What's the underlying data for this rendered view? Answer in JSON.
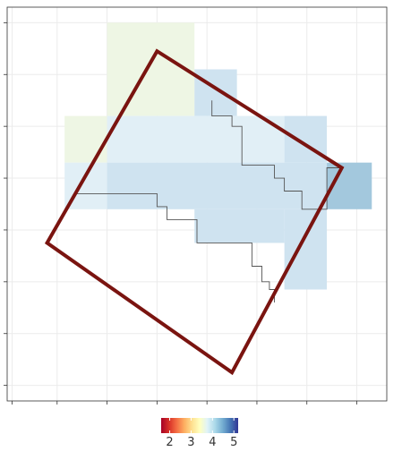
{
  "chart_data": {
    "type": "heatmap",
    "title": "",
    "xlabel": "",
    "ylabel": "",
    "xlim": [
      0,
      7.6
    ],
    "ylim": [
      0,
      7.6
    ],
    "grid": true,
    "x_axis_labels": [],
    "y_axis_labels": [],
    "cells": [
      {
        "x0": 2.0,
        "x1": 3.75,
        "y0": 5.5,
        "y1": 7.3,
        "value": 3.55,
        "color": "#eef6e4"
      },
      {
        "x0": 3.75,
        "x1": 4.6,
        "y0": 5.5,
        "y1": 6.4,
        "value": 4.1,
        "color": "#cfe3f0"
      },
      {
        "x0": 1.15,
        "x1": 2.0,
        "y0": 4.6,
        "y1": 5.5,
        "value": 3.55,
        "color": "#eef6e4"
      },
      {
        "x0": 2.0,
        "x1": 5.55,
        "y0": 4.6,
        "y1": 5.5,
        "value": 3.85,
        "color": "#e1eff6"
      },
      {
        "x0": 5.55,
        "x1": 6.4,
        "y0": 4.6,
        "y1": 5.5,
        "value": 4.1,
        "color": "#cfe3f0"
      },
      {
        "x0": 1.15,
        "x1": 2.0,
        "y0": 3.7,
        "y1": 4.6,
        "value": 3.85,
        "color": "#e1eff6"
      },
      {
        "x0": 2.0,
        "x1": 6.4,
        "y0": 3.7,
        "y1": 4.6,
        "value": 4.1,
        "color": "#cfe3f0"
      },
      {
        "x0": 6.4,
        "x1": 7.3,
        "y0": 3.7,
        "y1": 4.6,
        "value": 4.5,
        "color": "#a3c8dd"
      },
      {
        "x0": 3.75,
        "x1": 5.55,
        "y0": 3.05,
        "y1": 3.7,
        "value": 4.1,
        "color": "#cfe3f0"
      },
      {
        "x0": 5.55,
        "x1": 6.4,
        "y0": 2.15,
        "y1": 3.7,
        "value": 4.1,
        "color": "#cfe3f0"
      }
    ],
    "polygon": {
      "stroke": "#7a1410",
      "points": [
        [
          3.0,
          6.75
        ],
        [
          6.7,
          4.5
        ],
        [
          4.5,
          0.55
        ],
        [
          0.8,
          3.05
        ]
      ]
    },
    "stairs": [
      {
        "stroke": "#555555",
        "points": [
          [
            4.1,
            5.8
          ],
          [
            4.1,
            5.5
          ],
          [
            4.5,
            5.5
          ],
          [
            4.5,
            5.3
          ],
          [
            4.7,
            5.3
          ],
          [
            4.7,
            4.55
          ],
          [
            5.35,
            4.55
          ],
          [
            5.35,
            4.3
          ],
          [
            5.55,
            4.3
          ],
          [
            5.55,
            4.05
          ],
          [
            5.9,
            4.05
          ],
          [
            5.9,
            3.7
          ],
          [
            6.4,
            3.7
          ],
          [
            6.4,
            4.5
          ],
          [
            6.7,
            4.5
          ]
        ]
      },
      {
        "stroke": "#555555",
        "points": [
          [
            1.4,
            4.0
          ],
          [
            3.0,
            4.0
          ],
          [
            3.0,
            3.75
          ],
          [
            3.2,
            3.75
          ],
          [
            3.2,
            3.5
          ],
          [
            3.8,
            3.5
          ],
          [
            3.8,
            3.05
          ],
          [
            4.9,
            3.05
          ],
          [
            4.9,
            2.6
          ],
          [
            5.1,
            2.6
          ],
          [
            5.1,
            2.3
          ],
          [
            5.25,
            2.3
          ],
          [
            5.25,
            2.15
          ],
          [
            5.35,
            2.15
          ],
          [
            5.35,
            1.9
          ]
        ]
      }
    ],
    "legend": {
      "placement": "bottom",
      "tick_labels": [
        "2",
        "3",
        "4",
        "5"
      ],
      "tick_values": [
        2,
        3,
        4,
        5
      ],
      "range": [
        1.6,
        5.2
      ],
      "colors": [
        "#a50026",
        "#d73027",
        "#f46d43",
        "#fdae61",
        "#fee090",
        "#ffffbf",
        "#e0f3f8",
        "#abd9e9",
        "#74add1",
        "#4575b4",
        "#313695"
      ]
    }
  }
}
